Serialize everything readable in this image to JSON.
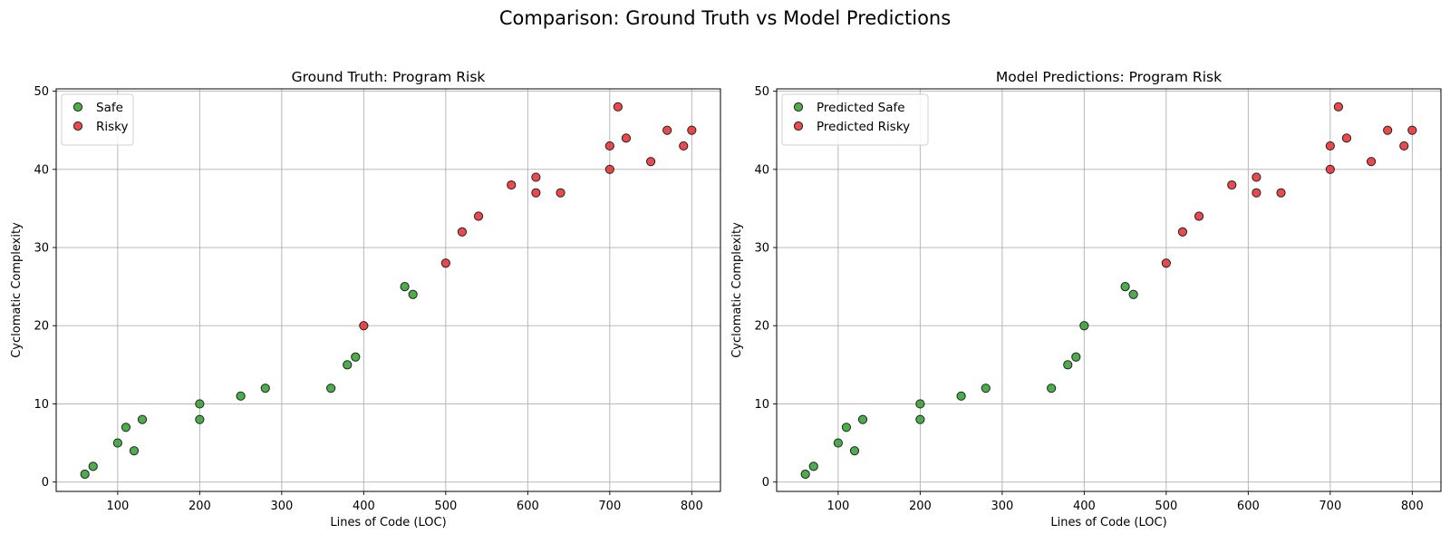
{
  "figure": {
    "title": "Comparison: Ground Truth vs Model Predictions"
  },
  "chart_data": [
    {
      "type": "scatter",
      "title": "Ground Truth: Program Risk",
      "xlabel": "Lines of Code (LOC)",
      "ylabel": "Cyclomatic Complexity",
      "xlim": [
        25,
        835
      ],
      "ylim": [
        -1.2,
        50.3
      ],
      "xticks": [
        100,
        200,
        300,
        400,
        500,
        600,
        700,
        800
      ],
      "yticks": [
        0,
        10,
        20,
        30,
        40,
        50
      ],
      "grid": true,
      "legend_position": "upper-left",
      "series": [
        {
          "name": "Safe",
          "color": "#2ca02c",
          "points": [
            [
              60,
              1
            ],
            [
              70,
              2
            ],
            [
              100,
              5
            ],
            [
              110,
              7
            ],
            [
              120,
              4
            ],
            [
              130,
              8
            ],
            [
              200,
              10
            ],
            [
              200,
              8
            ],
            [
              250,
              11
            ],
            [
              280,
              12
            ],
            [
              360,
              12
            ],
            [
              380,
              15
            ],
            [
              390,
              16
            ],
            [
              450,
              25
            ],
            [
              460,
              24
            ]
          ]
        },
        {
          "name": "Risky",
          "color": "#e8292b",
          "points": [
            [
              400,
              20
            ],
            [
              500,
              28
            ],
            [
              520,
              32
            ],
            [
              540,
              34
            ],
            [
              580,
              38
            ],
            [
              610,
              39
            ],
            [
              610,
              37
            ],
            [
              640,
              37
            ],
            [
              700,
              43
            ],
            [
              700,
              40
            ],
            [
              710,
              48
            ],
            [
              720,
              44
            ],
            [
              750,
              41
            ],
            [
              770,
              45
            ],
            [
              790,
              43
            ],
            [
              800,
              45
            ]
          ]
        }
      ]
    },
    {
      "type": "scatter",
      "title": "Model Predictions: Program Risk",
      "xlabel": "Lines of Code (LOC)",
      "ylabel": "Cyclomatic Complexity",
      "xlim": [
        25,
        835
      ],
      "ylim": [
        -1.2,
        50.3
      ],
      "xticks": [
        100,
        200,
        300,
        400,
        500,
        600,
        700,
        800
      ],
      "yticks": [
        0,
        10,
        20,
        30,
        40,
        50
      ],
      "grid": true,
      "legend_position": "upper-left",
      "series": [
        {
          "name": "Predicted Safe",
          "color": "#2ca02c",
          "points": [
            [
              60,
              1
            ],
            [
              70,
              2
            ],
            [
              100,
              5
            ],
            [
              110,
              7
            ],
            [
              120,
              4
            ],
            [
              130,
              8
            ],
            [
              200,
              10
            ],
            [
              200,
              8
            ],
            [
              250,
              11
            ],
            [
              280,
              12
            ],
            [
              360,
              12
            ],
            [
              380,
              15
            ],
            [
              390,
              16
            ],
            [
              400,
              20
            ],
            [
              450,
              25
            ],
            [
              460,
              24
            ]
          ]
        },
        {
          "name": "Predicted Risky",
          "color": "#e8292b",
          "points": [
            [
              500,
              28
            ],
            [
              520,
              32
            ],
            [
              540,
              34
            ],
            [
              580,
              38
            ],
            [
              610,
              39
            ],
            [
              610,
              37
            ],
            [
              640,
              37
            ],
            [
              700,
              43
            ],
            [
              700,
              40
            ],
            [
              710,
              48
            ],
            [
              720,
              44
            ],
            [
              750,
              41
            ],
            [
              770,
              45
            ],
            [
              790,
              43
            ],
            [
              800,
              45
            ]
          ]
        }
      ]
    }
  ]
}
